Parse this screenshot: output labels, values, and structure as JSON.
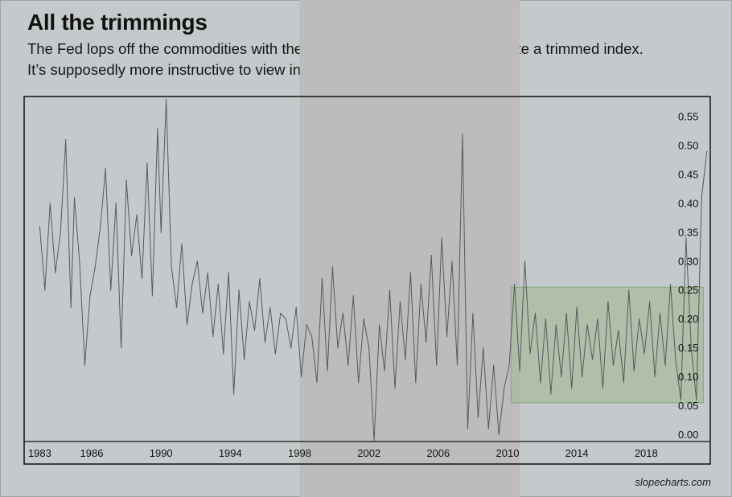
{
  "title": "All the trimmings",
  "subtitle_lines": [
    "The Fed lops off the commodities with the biggest changes in price to create a trimmed index.",
    "It’s supposedly more instructive to view inflation without the outliers."
  ],
  "credit": "slopecharts.com",
  "colors": {
    "background": "#c4c9cb",
    "shaded_band": "#bebbbd",
    "line": "#555a5c",
    "highlight_fill": "#a9bb9f",
    "highlight_stroke": "#84a87a"
  },
  "chart_data": {
    "type": "line",
    "title": "",
    "xlabel": "",
    "ylabel": "",
    "x_ticks": [
      "1983",
      "1986",
      "1990",
      "1994",
      "1998",
      "2002",
      "2006",
      "2010",
      "2014",
      "2018"
    ],
    "y_ticks": [
      "0.00",
      "0.05",
      "0.10",
      "0.15",
      "0.20",
      "0.25",
      "0.30",
      "0.35",
      "0.40",
      "0.45",
      "0.50",
      "0.55"
    ],
    "xlim": [
      1982.1,
      2021.7
    ],
    "ylim": [
      -0.012,
      0.585
    ],
    "grid": false,
    "legend": "none",
    "shaded_period": [
      1998.0,
      2010.7
    ],
    "highlight_box": {
      "x": [
        2010.2,
        2021.3
      ],
      "y": [
        0.055,
        0.255
      ]
    },
    "series": [
      {
        "name": "",
        "x": [
          1983.0,
          1983.3,
          1983.6,
          1983.9,
          1984.2,
          1984.5,
          1984.8,
          1985.0,
          1985.3,
          1985.6,
          1985.9,
          1986.2,
          1986.5,
          1986.8,
          1987.1,
          1987.4,
          1987.7,
          1988.0,
          1988.3,
          1988.6,
          1988.9,
          1989.2,
          1989.5,
          1989.8,
          1990.0,
          1990.3,
          1990.6,
          1990.9,
          1991.2,
          1991.5,
          1991.8,
          1992.1,
          1992.4,
          1992.7,
          1993.0,
          1993.3,
          1993.6,
          1993.9,
          1994.2,
          1994.5,
          1994.8,
          1995.1,
          1995.4,
          1995.7,
          1996.0,
          1996.3,
          1996.6,
          1996.9,
          1997.2,
          1997.5,
          1997.8,
          1998.1,
          1998.4,
          1998.7,
          1999.0,
          1999.3,
          1999.6,
          1999.9,
          2000.2,
          2000.5,
          2000.8,
          2001.1,
          2001.4,
          2001.7,
          2002.0,
          2002.3,
          2002.6,
          2002.9,
          2003.2,
          2003.5,
          2003.8,
          2004.1,
          2004.4,
          2004.7,
          2005.0,
          2005.3,
          2005.6,
          2005.9,
          2006.2,
          2006.5,
          2006.8,
          2007.1,
          2007.4,
          2007.7,
          2008.0,
          2008.3,
          2008.6,
          2008.9,
          2009.2,
          2009.5,
          2009.8,
          2010.1,
          2010.4,
          2010.7,
          2011.0,
          2011.3,
          2011.6,
          2011.9,
          2012.2,
          2012.5,
          2012.8,
          2013.1,
          2013.4,
          2013.7,
          2014.0,
          2014.3,
          2014.6,
          2014.9,
          2015.2,
          2015.5,
          2015.8,
          2016.1,
          2016.4,
          2016.7,
          2017.0,
          2017.3,
          2017.6,
          2017.9,
          2018.2,
          2018.5,
          2018.8,
          2019.1,
          2019.4,
          2019.7,
          2020.0,
          2020.3,
          2020.6,
          2020.9,
          2021.2,
          2021.5
        ],
        "values": [
          0.36,
          0.25,
          0.4,
          0.28,
          0.35,
          0.51,
          0.22,
          0.41,
          0.3,
          0.12,
          0.24,
          0.29,
          0.36,
          0.46,
          0.25,
          0.4,
          0.15,
          0.44,
          0.31,
          0.38,
          0.27,
          0.47,
          0.24,
          0.53,
          0.35,
          0.58,
          0.29,
          0.22,
          0.33,
          0.19,
          0.26,
          0.3,
          0.21,
          0.28,
          0.17,
          0.26,
          0.14,
          0.28,
          0.07,
          0.25,
          0.13,
          0.23,
          0.18,
          0.27,
          0.16,
          0.22,
          0.14,
          0.21,
          0.2,
          0.15,
          0.22,
          0.1,
          0.19,
          0.17,
          0.09,
          0.27,
          0.11,
          0.29,
          0.15,
          0.21,
          0.12,
          0.24,
          0.09,
          0.2,
          0.15,
          -0.01,
          0.19,
          0.11,
          0.25,
          0.08,
          0.23,
          0.13,
          0.28,
          0.09,
          0.26,
          0.16,
          0.31,
          0.12,
          0.34,
          0.17,
          0.3,
          0.12,
          0.52,
          0.01,
          0.21,
          0.03,
          0.15,
          0.01,
          0.12,
          0.0,
          0.08,
          0.12,
          0.26,
          0.11,
          0.3,
          0.14,
          0.21,
          0.09,
          0.2,
          0.07,
          0.19,
          0.1,
          0.21,
          0.08,
          0.22,
          0.1,
          0.19,
          0.13,
          0.2,
          0.08,
          0.23,
          0.12,
          0.18,
          0.09,
          0.25,
          0.11,
          0.2,
          0.14,
          0.23,
          0.1,
          0.21,
          0.12,
          0.26,
          0.13,
          0.06,
          0.34,
          0.15,
          0.06,
          0.41,
          0.49
        ]
      }
    ]
  }
}
